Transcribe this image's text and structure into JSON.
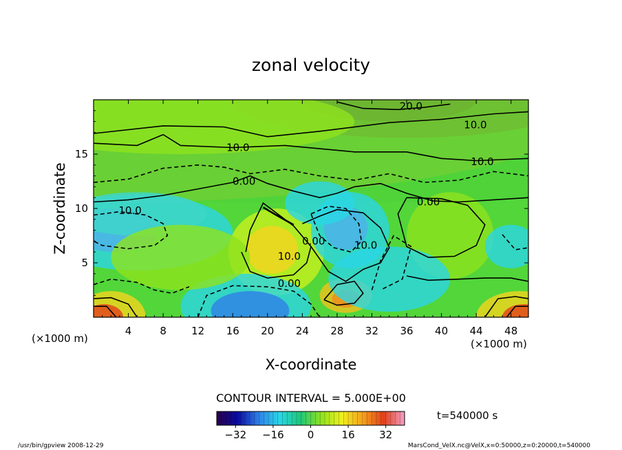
{
  "chart_data": {
    "type": "heatmap",
    "title": "zonal velocity",
    "xlabel": "X-coordinate",
    "ylabel": "Z-coordinate",
    "x_unit": "(×1000 m)",
    "xlim": [
      0,
      50
    ],
    "ylim": [
      0,
      20
    ],
    "x_ticks": [
      4,
      8,
      12,
      16,
      20,
      24,
      28,
      32,
      36,
      40,
      44,
      48
    ],
    "y_ticks": [
      5,
      10,
      15
    ],
    "contour_interval_text": "CONTOUR INTERVAL = 5.000E+00",
    "time_text": "t=540000 s",
    "colorbar": {
      "range": [
        -40,
        40
      ],
      "ticks": [
        -32,
        -16,
        0,
        16,
        32
      ],
      "colors": [
        "#2a004a",
        "#0a0aa0",
        "#2f7fe8",
        "#2ad6e6",
        "#1ec77a",
        "#8fe21e",
        "#f0f01e",
        "#f5a01e",
        "#e2401a",
        "#f2a0c8"
      ]
    },
    "contour_labels": [
      {
        "text": "20.0",
        "x": 36.5,
        "z": 19.4
      },
      {
        "text": "10.0",
        "x": 43.9,
        "z": 17.7
      },
      {
        "text": "10.0",
        "x": 16.6,
        "z": 15.6
      },
      {
        "text": "10.0",
        "x": 44.7,
        "z": 14.3
      },
      {
        "text": "0.00",
        "x": 17.3,
        "z": 12.5
      },
      {
        "text": "0.00",
        "x": 38.5,
        "z": 10.6
      },
      {
        "text": "10.0",
        "x": 4.2,
        "z": 9.8
      },
      {
        "text": "10.0",
        "x": 31.3,
        "z": 6.6
      },
      {
        "text": "0.00",
        "x": 25.3,
        "z": 7.0
      },
      {
        "text": "10.0",
        "x": 22.5,
        "z": 5.6
      },
      {
        "text": "0.00",
        "x": 22.5,
        "z": 3.1
      }
    ]
  },
  "footer": {
    "left": "/usr/bin/gpview   2008-12-29",
    "right": "MarsCond_VelX.nc@VelX,x=0:50000,z=0:20000,t=540000"
  }
}
